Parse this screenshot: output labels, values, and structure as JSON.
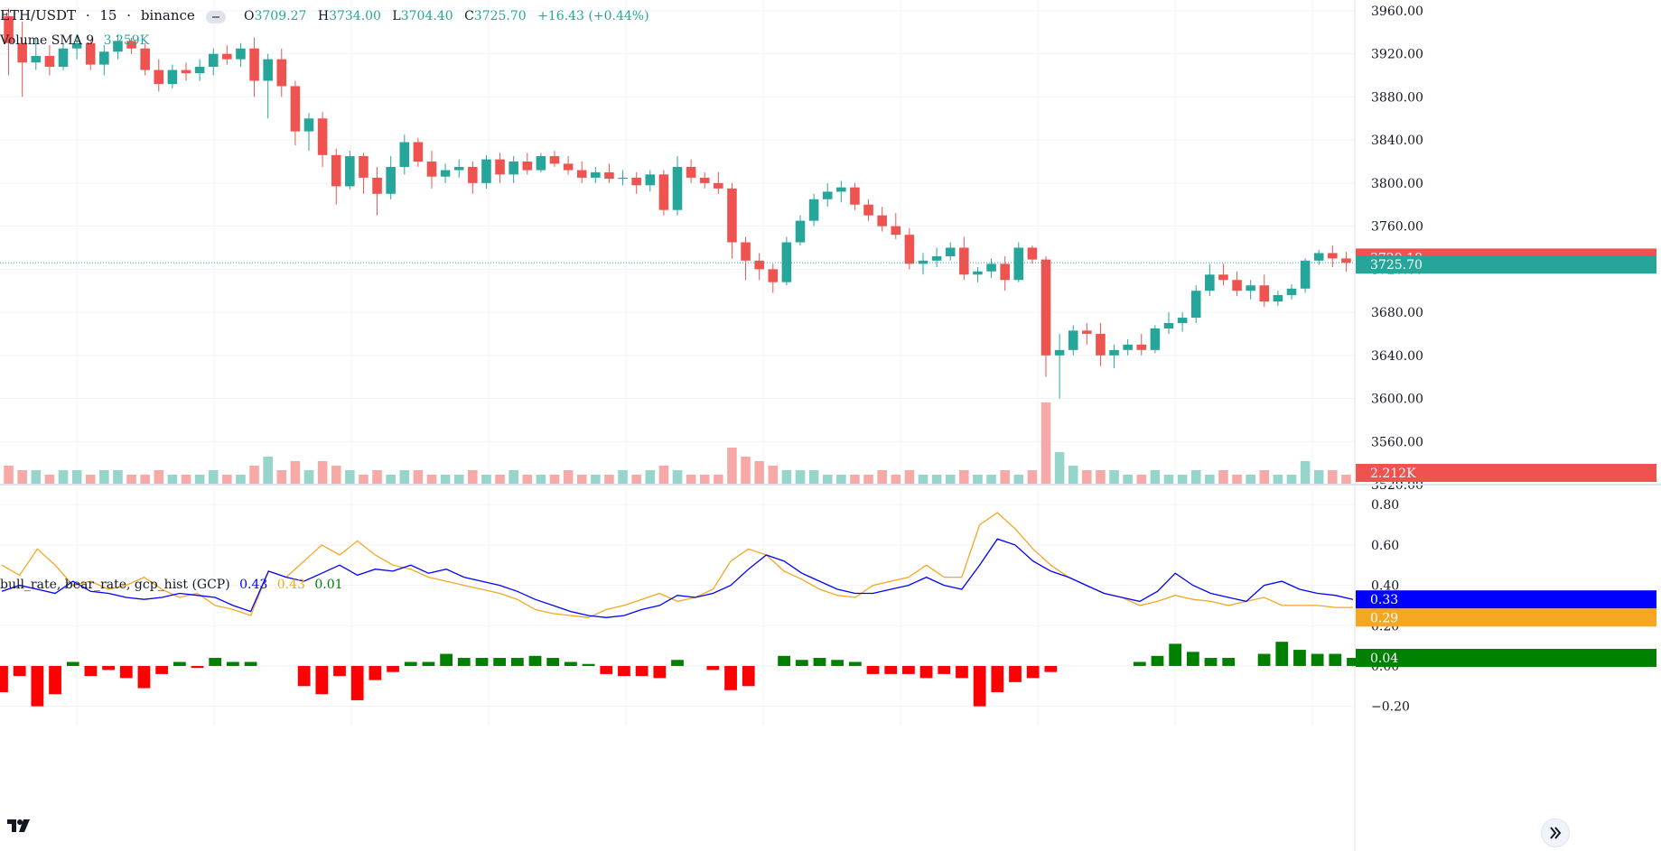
{
  "header": {
    "symbol": "ETH/USDT",
    "sep1": "·",
    "interval": "15",
    "sep2": "·",
    "exchange": "binance",
    "open_label": "O",
    "open": "3709.27",
    "high_label": "H",
    "high": "3734.00",
    "low_label": "L",
    "low": "3704.40",
    "close_label": "C",
    "close": "3725.70",
    "change": "+16.43 (+0.44%)"
  },
  "volume_legend": {
    "label": "Volume SMA 9",
    "value": "3.259K"
  },
  "gcp_legend": {
    "label": "bull_rate, bear_rate, gcp_hist (GCP)",
    "bull": "0.43",
    "bear": "0.43",
    "hist": "0.01"
  },
  "price_axis": {
    "ticks": [
      "3960.00",
      "3920.00",
      "3880.00",
      "3840.00",
      "3800.00",
      "3760.00",
      "3720.00",
      "3680.00",
      "3640.00",
      "3600.00",
      "3560.00",
      "3520.00"
    ]
  },
  "price_badges": {
    "last_red": "3729.18",
    "last_green": "3725.70",
    "volume": "2.212K"
  },
  "gcp_axis": {
    "ticks": [
      "0.80",
      "0.60",
      "0.40",
      "0.20",
      "0.00",
      "−0.20"
    ]
  },
  "gcp_badges": {
    "bull": "0.33",
    "bear": "0.29",
    "hist": "0.04"
  },
  "colors": {
    "up": "#26a69a",
    "down": "#ef5350",
    "vol_up": "#95d5cc",
    "vol_down": "#f7a9a7",
    "bull": "#0000ff",
    "bear": "#f5a623",
    "hist_pos": "#008000",
    "hist_neg": "#ff0000"
  },
  "icons": {
    "logo": "tradingview-logo-icon",
    "scroll": "double-chevron-right-icon",
    "collapse": "minus-pill-icon"
  },
  "chart_data": {
    "type": "candlestick",
    "ylim": [
      3520,
      3970
    ],
    "candles": [
      [
        3955,
        3962,
        3900,
        3930
      ],
      [
        3930,
        3950,
        3880,
        3912
      ],
      [
        3912,
        3935,
        3905,
        3918
      ],
      [
        3918,
        3928,
        3900,
        3908
      ],
      [
        3908,
        3930,
        3905,
        3925
      ],
      [
        3925,
        3938,
        3915,
        3930
      ],
      [
        3930,
        3933,
        3905,
        3910
      ],
      [
        3910,
        3928,
        3900,
        3922
      ],
      [
        3922,
        3938,
        3915,
        3932
      ],
      [
        3932,
        3935,
        3920,
        3925
      ],
      [
        3925,
        3930,
        3900,
        3905
      ],
      [
        3905,
        3915,
        3885,
        3892
      ],
      [
        3892,
        3910,
        3888,
        3905
      ],
      [
        3905,
        3912,
        3895,
        3902
      ],
      [
        3902,
        3915,
        3895,
        3908
      ],
      [
        3908,
        3925,
        3900,
        3920
      ],
      [
        3920,
        3928,
        3910,
        3915
      ],
      [
        3915,
        3930,
        3908,
        3925
      ],
      [
        3925,
        3935,
        3880,
        3895
      ],
      [
        3895,
        3920,
        3860,
        3915
      ],
      [
        3915,
        3925,
        3880,
        3890
      ],
      [
        3890,
        3895,
        3835,
        3848
      ],
      [
        3848,
        3865,
        3830,
        3860
      ],
      [
        3860,
        3866,
        3815,
        3826
      ],
      [
        3826,
        3832,
        3780,
        3797
      ],
      [
        3797,
        3830,
        3794,
        3825
      ],
      [
        3825,
        3828,
        3790,
        3805
      ],
      [
        3805,
        3815,
        3770,
        3790
      ],
      [
        3790,
        3825,
        3785,
        3815
      ],
      [
        3815,
        3845,
        3808,
        3838
      ],
      [
        3838,
        3842,
        3815,
        3820
      ],
      [
        3820,
        3830,
        3795,
        3806
      ],
      [
        3806,
        3818,
        3800,
        3812
      ],
      [
        3812,
        3822,
        3805,
        3815
      ],
      [
        3815,
        3820,
        3790,
        3800
      ],
      [
        3800,
        3826,
        3795,
        3822
      ],
      [
        3822,
        3828,
        3800,
        3808
      ],
      [
        3808,
        3825,
        3800,
        3820
      ],
      [
        3820,
        3828,
        3808,
        3812
      ],
      [
        3812,
        3828,
        3810,
        3825
      ],
      [
        3825,
        3830,
        3815,
        3818
      ],
      [
        3818,
        3825,
        3808,
        3812
      ],
      [
        3812,
        3820,
        3800,
        3805
      ],
      [
        3805,
        3815,
        3800,
        3810
      ],
      [
        3810,
        3818,
        3800,
        3804
      ],
      [
        3804,
        3812,
        3798,
        3805
      ],
      [
        3805,
        3810,
        3790,
        3798
      ],
      [
        3798,
        3812,
        3792,
        3808
      ],
      [
        3808,
        3812,
        3770,
        3775
      ],
      [
        3775,
        3825,
        3770,
        3815
      ],
      [
        3815,
        3822,
        3800,
        3805
      ],
      [
        3805,
        3810,
        3795,
        3800
      ],
      [
        3800,
        3810,
        3790,
        3795
      ],
      [
        3795,
        3800,
        3730,
        3745
      ],
      [
        3745,
        3750,
        3710,
        3728
      ],
      [
        3728,
        3735,
        3710,
        3720
      ],
      [
        3720,
        3725,
        3698,
        3708
      ],
      [
        3708,
        3750,
        3705,
        3745
      ],
      [
        3745,
        3770,
        3742,
        3765
      ],
      [
        3765,
        3790,
        3760,
        3785
      ],
      [
        3785,
        3800,
        3778,
        3792
      ],
      [
        3792,
        3802,
        3782,
        3796
      ],
      [
        3796,
        3800,
        3775,
        3780
      ],
      [
        3780,
        3785,
        3765,
        3770
      ],
      [
        3770,
        3778,
        3755,
        3760
      ],
      [
        3760,
        3772,
        3748,
        3752
      ],
      [
        3752,
        3758,
        3720,
        3725
      ],
      [
        3725,
        3735,
        3715,
        3728
      ],
      [
        3728,
        3740,
        3722,
        3732
      ],
      [
        3732,
        3745,
        3728,
        3740
      ],
      [
        3740,
        3750,
        3710,
        3715
      ],
      [
        3715,
        3722,
        3708,
        3718
      ],
      [
        3718,
        3730,
        3712,
        3725
      ],
      [
        3725,
        3732,
        3700,
        3710
      ],
      [
        3710,
        3745,
        3708,
        3740
      ],
      [
        3740,
        3742,
        3725,
        3729
      ],
      [
        3729,
        3732,
        3620,
        3640
      ],
      [
        3640,
        3660,
        3600,
        3645
      ],
      [
        3645,
        3668,
        3640,
        3663
      ],
      [
        3663,
        3670,
        3650,
        3660
      ],
      [
        3660,
        3670,
        3630,
        3640
      ],
      [
        3640,
        3650,
        3628,
        3645
      ],
      [
        3645,
        3655,
        3640,
        3650
      ],
      [
        3650,
        3660,
        3640,
        3645
      ],
      [
        3645,
        3668,
        3642,
        3665
      ],
      [
        3665,
        3680,
        3660,
        3670
      ],
      [
        3670,
        3680,
        3662,
        3675
      ],
      [
        3675,
        3705,
        3670,
        3700
      ],
      [
        3700,
        3725,
        3695,
        3715
      ],
      [
        3715,
        3725,
        3705,
        3710
      ],
      [
        3710,
        3718,
        3695,
        3700
      ],
      [
        3700,
        3710,
        3692,
        3705
      ],
      [
        3705,
        3715,
        3685,
        3690
      ],
      [
        3690,
        3700,
        3686,
        3696
      ],
      [
        3696,
        3706,
        3692,
        3702
      ],
      [
        3702,
        3730,
        3698,
        3728
      ],
      [
        3728,
        3738,
        3724,
        3735
      ],
      [
        3735,
        3742,
        3722,
        3730
      ],
      [
        3730,
        3736,
        3718,
        3726
      ]
    ],
    "volume": [
      4,
      3,
      3,
      2,
      3,
      3,
      2,
      3,
      3,
      2,
      2,
      3,
      2,
      2,
      2,
      3,
      2,
      2,
      4,
      6,
      3,
      5,
      3,
      5,
      4,
      3,
      2,
      3,
      2,
      3,
      3,
      2,
      2,
      2,
      3,
      2,
      2,
      3,
      2,
      2,
      2,
      3,
      2,
      2,
      2,
      3,
      2,
      3,
      4,
      3,
      2,
      2,
      2,
      8,
      6,
      5,
      4,
      3,
      3,
      3,
      2,
      2,
      2,
      2,
      3,
      2,
      3,
      2,
      2,
      2,
      3,
      2,
      2,
      3,
      2,
      3,
      18,
      7,
      4,
      3,
      3,
      3,
      2,
      2,
      3,
      2,
      2,
      3,
      2,
      3,
      2,
      2,
      3,
      2,
      2,
      5,
      3,
      3,
      2
    ],
    "volume_sma": "3.259K",
    "gcp": {
      "bull": [
        0.37,
        0.4,
        0.38,
        0.36,
        0.42,
        0.37,
        0.36,
        0.34,
        0.33,
        0.34,
        0.36,
        0.35,
        0.34,
        0.3,
        0.27,
        0.47,
        0.44,
        0.42,
        0.46,
        0.5,
        0.45,
        0.48,
        0.47,
        0.5,
        0.46,
        0.48,
        0.44,
        0.42,
        0.4,
        0.37,
        0.33,
        0.3,
        0.27,
        0.25,
        0.24,
        0.25,
        0.28,
        0.3,
        0.35,
        0.34,
        0.36,
        0.4,
        0.48,
        0.55,
        0.52,
        0.46,
        0.42,
        0.38,
        0.36,
        0.36,
        0.38,
        0.4,
        0.44,
        0.4,
        0.38,
        0.5,
        0.63,
        0.6,
        0.52,
        0.47,
        0.44,
        0.4,
        0.36,
        0.34,
        0.32,
        0.37,
        0.46,
        0.4,
        0.36,
        0.34,
        0.32,
        0.4,
        0.42,
        0.38,
        0.36,
        0.35,
        0.33
      ],
      "bear": [
        0.5,
        0.45,
        0.58,
        0.5,
        0.4,
        0.42,
        0.38,
        0.4,
        0.44,
        0.38,
        0.34,
        0.36,
        0.3,
        0.28,
        0.25,
        0.47,
        0.44,
        0.52,
        0.6,
        0.55,
        0.62,
        0.55,
        0.5,
        0.48,
        0.44,
        0.42,
        0.4,
        0.38,
        0.36,
        0.33,
        0.28,
        0.26,
        0.25,
        0.24,
        0.28,
        0.3,
        0.33,
        0.36,
        0.32,
        0.34,
        0.38,
        0.52,
        0.58,
        0.55,
        0.47,
        0.43,
        0.38,
        0.35,
        0.34,
        0.4,
        0.42,
        0.44,
        0.5,
        0.44,
        0.44,
        0.7,
        0.76,
        0.68,
        0.58,
        0.5,
        0.44,
        0.4,
        0.36,
        0.34,
        0.3,
        0.32,
        0.35,
        0.33,
        0.32,
        0.3,
        0.32,
        0.34,
        0.3,
        0.3,
        0.3,
        0.29,
        0.29
      ]
    }
  }
}
